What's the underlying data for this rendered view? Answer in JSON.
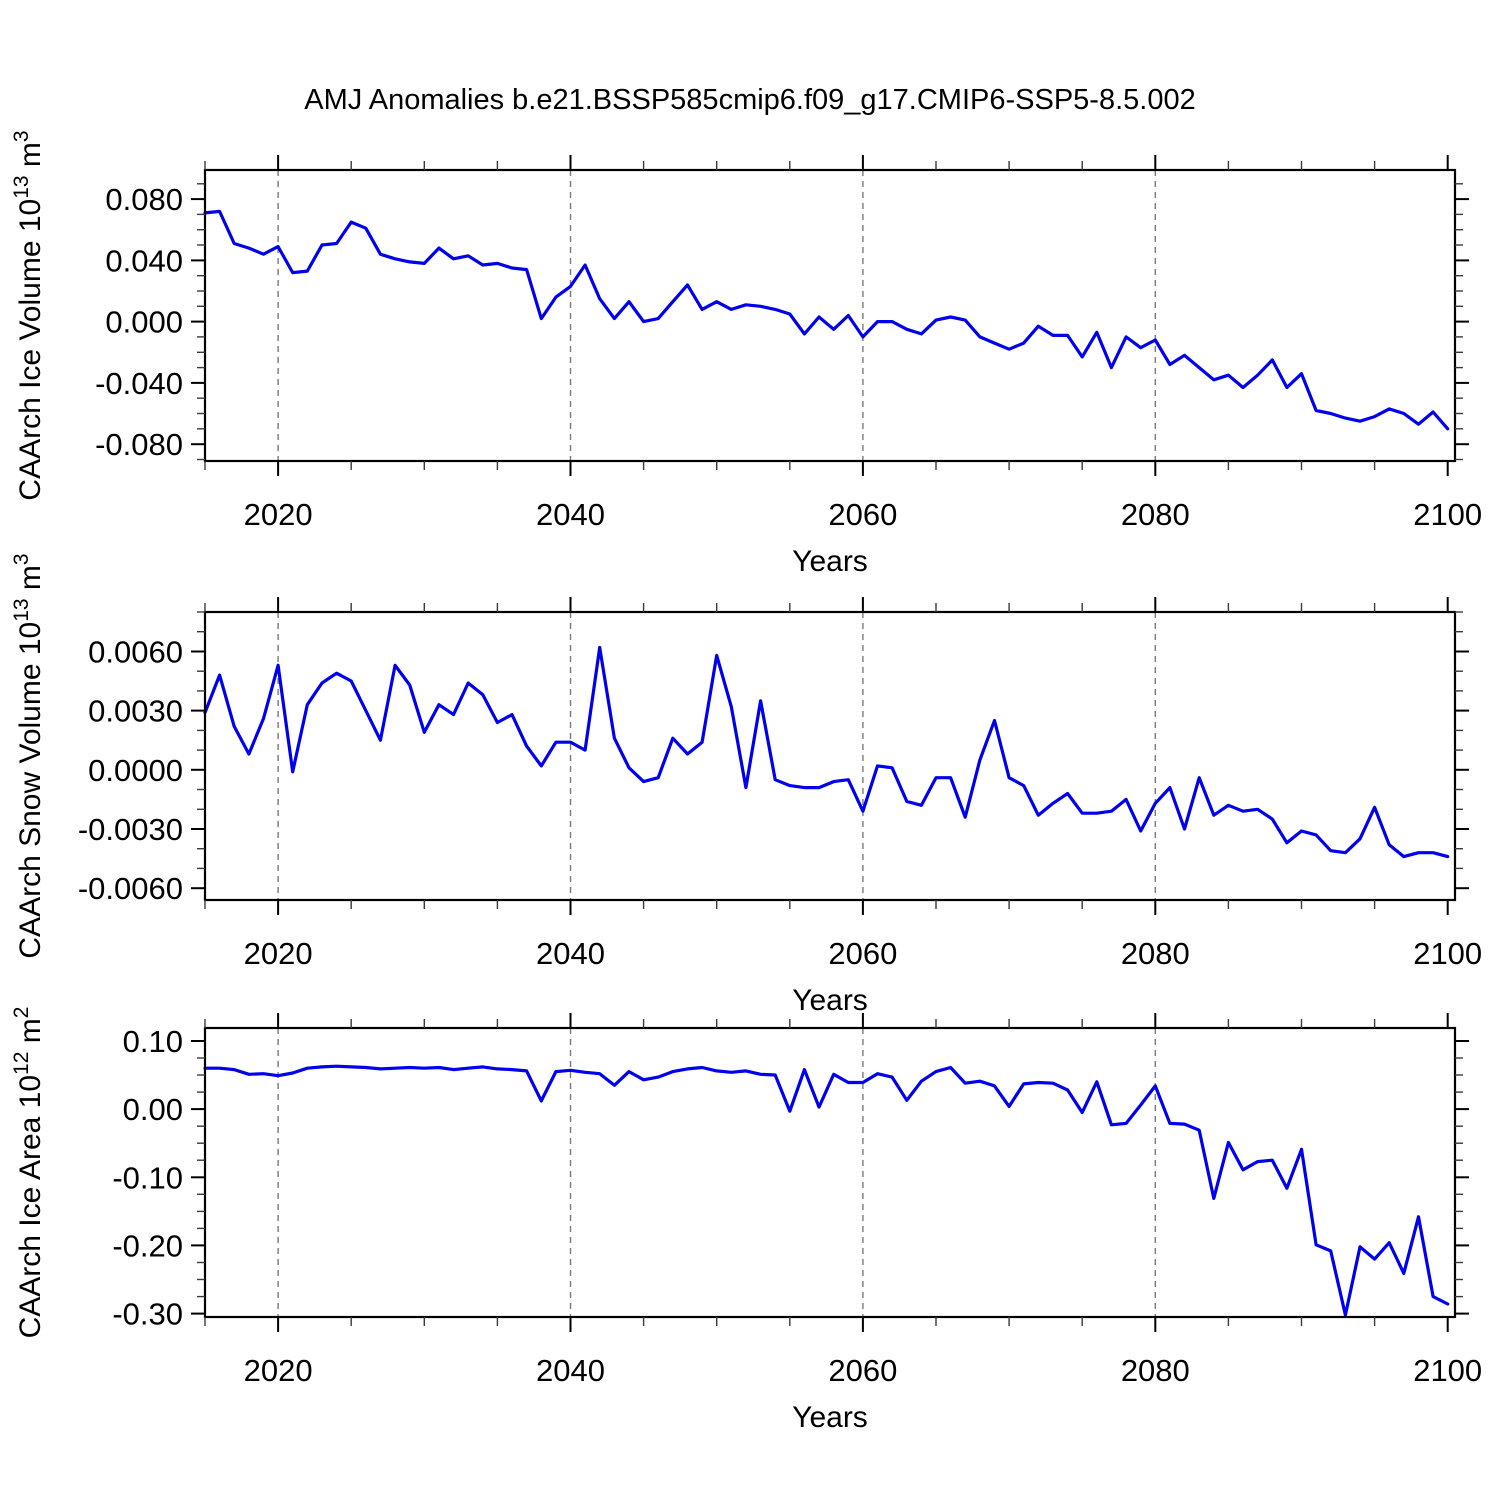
{
  "title": "AMJ Anomalies b.e21.BSSP585cmip6.f09_g17.CMIP6-SSP5-8.5.002",
  "chart_data": {
    "type": "line",
    "title": "AMJ Anomalies b.e21.BSSP585cmip6.f09_g17.CMIP6-SSP5-8.5.002",
    "xlabel": "Years",
    "line_color": "#0000EE",
    "background": "#ffffff",
    "legend": "none",
    "x_axis": {
      "min": 2015,
      "max": 2100.5,
      "major_ticks": [
        2020,
        2040,
        2060,
        2080,
        2100
      ],
      "tick_labels": [
        "2020",
        "2040",
        "2060",
        "2080",
        "2100"
      ],
      "minor_step": 5,
      "gridlines": [
        2020,
        2040,
        2060,
        2080
      ],
      "grid_style": "vertical-dashed-gray"
    },
    "years": [
      2015,
      2016,
      2017,
      2018,
      2019,
      2020,
      2021,
      2022,
      2023,
      2024,
      2025,
      2026,
      2027,
      2028,
      2029,
      2030,
      2031,
      2032,
      2033,
      2034,
      2035,
      2036,
      2037,
      2038,
      2039,
      2040,
      2041,
      2042,
      2043,
      2044,
      2045,
      2046,
      2047,
      2048,
      2049,
      2050,
      2051,
      2052,
      2053,
      2054,
      2055,
      2056,
      2057,
      2058,
      2059,
      2060,
      2061,
      2062,
      2063,
      2064,
      2065,
      2066,
      2067,
      2068,
      2069,
      2070,
      2071,
      2072,
      2073,
      2074,
      2075,
      2076,
      2077,
      2078,
      2079,
      2080,
      2081,
      2082,
      2083,
      2084,
      2085,
      2086,
      2087,
      2088,
      2089,
      2090,
      2091,
      2092,
      2093,
      2094,
      2095,
      2096,
      2097,
      2098,
      2099,
      2100
    ],
    "panels": [
      {
        "id": "ice-volume",
        "ylabel": "CAArch Ice Volume 10^13 m^3",
        "ylabel_parts": [
          {
            "t": "CAArch Ice Volume 10"
          },
          {
            "sup": "13"
          },
          {
            "t": " m"
          },
          {
            "sup": "3"
          }
        ],
        "ylim": [
          -0.091,
          0.099
        ],
        "y_major_ticks": [
          0.08,
          0.04,
          0.0,
          -0.04,
          -0.08
        ],
        "y_tick_labels": [
          "0.080",
          "0.040",
          "0.000",
          "-0.040",
          "-0.080"
        ],
        "y_minor_step": 0.01,
        "values": [
          0.071,
          0.072,
          0.051,
          0.048,
          0.044,
          0.049,
          0.032,
          0.033,
          0.05,
          0.051,
          0.065,
          0.061,
          0.044,
          0.041,
          0.039,
          0.038,
          0.048,
          0.041,
          0.043,
          0.037,
          0.038,
          0.035,
          0.034,
          0.002,
          0.016,
          0.023,
          0.037,
          0.015,
          0.002,
          0.013,
          0.0,
          0.002,
          0.013,
          0.024,
          0.008,
          0.013,
          0.008,
          0.011,
          0.01,
          0.008,
          0.005,
          -0.008,
          0.003,
          -0.005,
          0.004,
          -0.01,
          0.0,
          0.0,
          -0.005,
          -0.008,
          0.001,
          0.003,
          0.001,
          -0.01,
          -0.014,
          -0.018,
          -0.014,
          -0.003,
          -0.009,
          -0.009,
          -0.023,
          -0.007,
          -0.03,
          -0.01,
          -0.017,
          -0.012,
          -0.028,
          -0.022,
          -0.03,
          -0.038,
          -0.035,
          -0.043,
          -0.035,
          -0.025,
          -0.043,
          -0.034,
          -0.058,
          -0.06,
          -0.063,
          -0.065,
          -0.062,
          -0.057,
          -0.06,
          -0.067,
          -0.059,
          -0.07
        ]
      },
      {
        "id": "snow-volume",
        "ylabel": "CAArch Snow Volume 10^13 m^3",
        "ylabel_parts": [
          {
            "t": "CAArch Snow Volume 10"
          },
          {
            "sup": "13"
          },
          {
            "t": " m"
          },
          {
            "sup": "3"
          }
        ],
        "ylim": [
          -0.0066,
          0.008
        ],
        "y_major_ticks": [
          0.006,
          0.003,
          0.0,
          -0.003,
          -0.006
        ],
        "y_tick_labels": [
          "0.0060",
          "0.0030",
          "0.0000",
          "-0.0030",
          "-0.0060"
        ],
        "y_minor_step": 0.001,
        "values": [
          0.0029,
          0.0048,
          0.0022,
          0.0008,
          0.0026,
          0.0053,
          -0.0001,
          0.0033,
          0.0044,
          0.0049,
          0.0045,
          0.003,
          0.0015,
          0.0053,
          0.0043,
          0.0019,
          0.0033,
          0.0028,
          0.0044,
          0.0038,
          0.0024,
          0.0028,
          0.0012,
          0.0002,
          0.0014,
          0.0014,
          0.001,
          0.0062,
          0.0016,
          0.0001,
          -0.0006,
          -0.0004,
          0.0016,
          0.0008,
          0.0014,
          0.0058,
          0.0032,
          -0.0009,
          0.0035,
          -0.0005,
          -0.0008,
          -0.0009,
          -0.0009,
          -0.0006,
          -0.0005,
          -0.0021,
          0.0002,
          0.0001,
          -0.0016,
          -0.0018,
          -0.0004,
          -0.0004,
          -0.0024,
          0.0005,
          0.0025,
          -0.0004,
          -0.0008,
          -0.0023,
          -0.0017,
          -0.0012,
          -0.0022,
          -0.0022,
          -0.0021,
          -0.0015,
          -0.0031,
          -0.0017,
          -0.0009,
          -0.003,
          -0.0004,
          -0.0023,
          -0.0018,
          -0.0021,
          -0.002,
          -0.0025,
          -0.0037,
          -0.0031,
          -0.0033,
          -0.0041,
          -0.0042,
          -0.0035,
          -0.0019,
          -0.0038,
          -0.0044,
          -0.0042,
          -0.0042,
          -0.0044
        ]
      },
      {
        "id": "ice-area",
        "ylabel": "CAArch Ice Area 10^12 m^2",
        "ylabel_parts": [
          {
            "t": "CAArch Ice Area 10"
          },
          {
            "sup": "12"
          },
          {
            "t": " m"
          },
          {
            "sup": "2"
          }
        ],
        "ylim": [
          -0.305,
          0.119
        ],
        "y_major_ticks": [
          0.1,
          0.0,
          -0.1,
          -0.2,
          -0.3
        ],
        "y_tick_labels": [
          "0.10",
          "0.00",
          "-0.10",
          "-0.20",
          "-0.30"
        ],
        "y_minor_step": 0.025,
        "values": [
          0.06,
          0.06,
          0.058,
          0.051,
          0.052,
          0.049,
          0.053,
          0.06,
          0.062,
          0.063,
          0.062,
          0.061,
          0.059,
          0.06,
          0.061,
          0.06,
          0.061,
          0.058,
          0.06,
          0.062,
          0.059,
          0.058,
          0.056,
          0.012,
          0.055,
          0.057,
          0.054,
          0.052,
          0.035,
          0.055,
          0.043,
          0.047,
          0.055,
          0.059,
          0.061,
          0.056,
          0.054,
          0.056,
          0.051,
          0.05,
          -0.003,
          0.058,
          0.003,
          0.051,
          0.039,
          0.039,
          0.052,
          0.047,
          0.013,
          0.041,
          0.055,
          0.061,
          0.038,
          0.041,
          0.034,
          0.004,
          0.037,
          0.039,
          0.038,
          0.028,
          -0.005,
          0.04,
          -0.023,
          -0.021,
          0.006,
          0.034,
          -0.021,
          -0.022,
          -0.031,
          -0.131,
          -0.049,
          -0.089,
          -0.077,
          -0.075,
          -0.116,
          -0.059,
          -0.199,
          -0.208,
          -0.302,
          -0.202,
          -0.22,
          -0.196,
          -0.241,
          -0.158,
          -0.275,
          -0.286
        ]
      }
    ]
  }
}
